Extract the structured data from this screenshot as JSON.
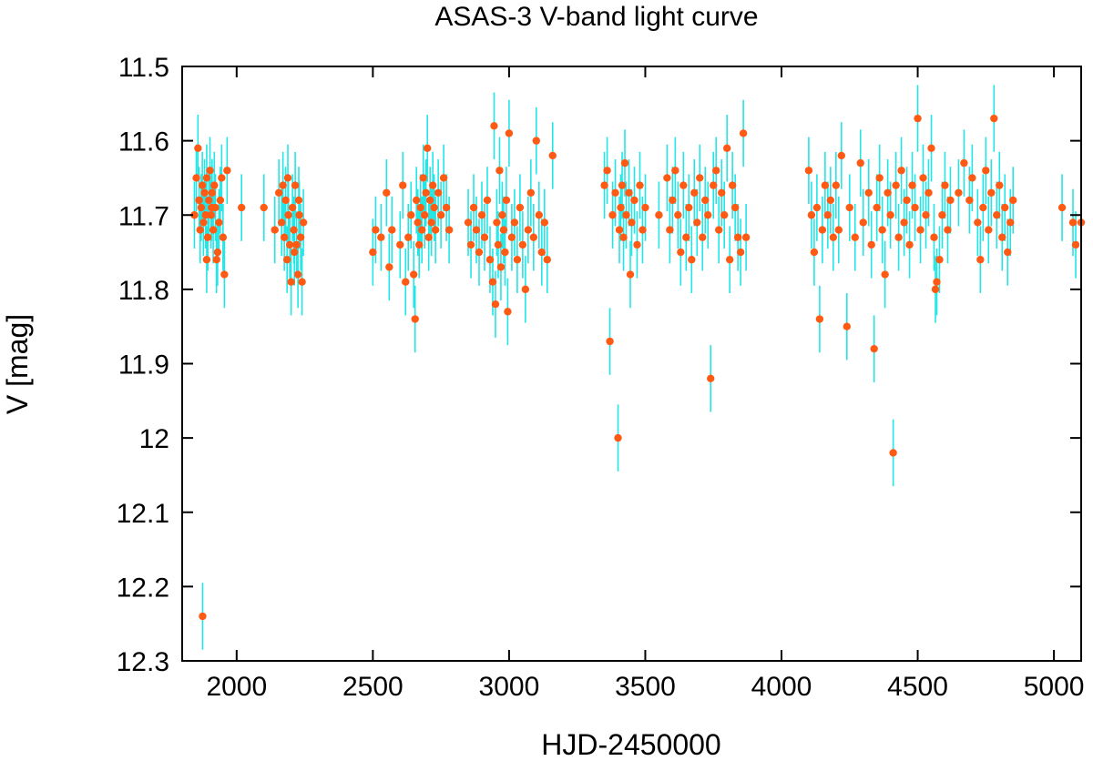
{
  "chart_data": {
    "type": "scatter",
    "title": "ASAS-3 V-band light curve",
    "xlabel": "HJD-2450000",
    "ylabel": "V [mag]",
    "xlim": [
      1800,
      5100
    ],
    "ylim": [
      11.5,
      12.3
    ],
    "y_inverted": true,
    "grid": false,
    "xticks": [
      2000,
      2500,
      3000,
      3500,
      4000,
      4500,
      5000
    ],
    "xtick_labels": [
      "2000",
      "2500",
      "3000",
      "3500",
      "4000",
      "4500",
      "5000"
    ],
    "yticks": [
      11.5,
      11.6,
      11.7,
      11.8,
      11.9,
      12.0,
      12.1,
      12.2,
      12.3
    ],
    "ytick_labels": [
      "11.5",
      "11.6",
      "11.7",
      "11.8",
      "11.9",
      "12",
      "12.1",
      "12.2",
      "12.3"
    ],
    "marker_color": "#ff5a14",
    "errorbar_color": "#22e6e6",
    "series": [
      {
        "name": "V magnitude",
        "points": [
          [
            1845,
            11.7
          ],
          [
            1852,
            11.65
          ],
          [
            1858,
            11.61
          ],
          [
            1862,
            11.68
          ],
          [
            1866,
            11.72
          ],
          [
            1870,
            11.69
          ],
          [
            1874,
            11.66
          ],
          [
            1878,
            11.71
          ],
          [
            1882,
            11.67
          ],
          [
            1886,
            11.7
          ],
          [
            1890,
            11.65
          ],
          [
            1894,
            11.73
          ],
          [
            1898,
            11.68
          ],
          [
            1902,
            11.64
          ],
          [
            1906,
            11.7
          ],
          [
            1910,
            11.67
          ],
          [
            1914,
            11.72
          ],
          [
            1918,
            11.66
          ],
          [
            1922,
            11.69
          ],
          [
            1926,
            11.76
          ],
          [
            1930,
            11.75
          ],
          [
            1935,
            11.71
          ],
          [
            1940,
            11.68
          ],
          [
            1945,
            11.65
          ],
          [
            1950,
            11.73
          ],
          [
            1955,
            11.78
          ],
          [
            1965,
            11.64
          ],
          [
            1875,
            12.24
          ],
          [
            1890,
            11.76
          ],
          [
            1908,
            11.69
          ],
          [
            2018,
            11.69
          ],
          [
            2100,
            11.69
          ],
          [
            2140,
            11.72
          ],
          [
            2155,
            11.67
          ],
          [
            2165,
            11.71
          ],
          [
            2170,
            11.66
          ],
          [
            2175,
            11.73
          ],
          [
            2180,
            11.68
          ],
          [
            2185,
            11.76
          ],
          [
            2190,
            11.7
          ],
          [
            2195,
            11.74
          ],
          [
            2200,
            11.79
          ],
          [
            2205,
            11.69
          ],
          [
            2210,
            11.72
          ],
          [
            2215,
            11.66
          ],
          [
            2220,
            11.74
          ],
          [
            2225,
            11.78
          ],
          [
            2230,
            11.7
          ],
          [
            2235,
            11.73
          ],
          [
            2240,
            11.79
          ],
          [
            2188,
            11.65
          ],
          [
            2212,
            11.75
          ],
          [
            2228,
            11.68
          ],
          [
            2245,
            11.71
          ],
          [
            2500,
            11.75
          ],
          [
            2510,
            11.72
          ],
          [
            2530,
            11.73
          ],
          [
            2550,
            11.67
          ],
          [
            2560,
            11.77
          ],
          [
            2570,
            11.72
          ],
          [
            2600,
            11.74
          ],
          [
            2610,
            11.66
          ],
          [
            2620,
            11.79
          ],
          [
            2630,
            11.73
          ],
          [
            2640,
            11.7
          ],
          [
            2650,
            11.78
          ],
          [
            2655,
            11.84
          ],
          [
            2660,
            11.68
          ],
          [
            2665,
            11.71
          ],
          [
            2670,
            11.74
          ],
          [
            2675,
            11.69
          ],
          [
            2680,
            11.72
          ],
          [
            2685,
            11.65
          ],
          [
            2690,
            11.7
          ],
          [
            2695,
            11.67
          ],
          [
            2700,
            11.61
          ],
          [
            2705,
            11.73
          ],
          [
            2710,
            11.68
          ],
          [
            2715,
            11.71
          ],
          [
            2720,
            11.66
          ],
          [
            2725,
            11.69
          ],
          [
            2730,
            11.72
          ],
          [
            2740,
            11.67
          ],
          [
            2750,
            11.7
          ],
          [
            2760,
            11.65
          ],
          [
            2770,
            11.69
          ],
          [
            2780,
            11.72
          ],
          [
            2850,
            11.71
          ],
          [
            2860,
            11.74
          ],
          [
            2870,
            11.69
          ],
          [
            2880,
            11.72
          ],
          [
            2890,
            11.75
          ],
          [
            2900,
            11.7
          ],
          [
            2910,
            11.73
          ],
          [
            2920,
            11.68
          ],
          [
            2930,
            11.76
          ],
          [
            2940,
            11.79
          ],
          [
            2945,
            11.58
          ],
          [
            2950,
            11.82
          ],
          [
            2955,
            11.71
          ],
          [
            2960,
            11.74
          ],
          [
            2965,
            11.64
          ],
          [
            2970,
            11.77
          ],
          [
            2975,
            11.7
          ],
          [
            2980,
            11.72
          ],
          [
            2985,
            11.75
          ],
          [
            2990,
            11.68
          ],
          [
            2995,
            11.83
          ],
          [
            3000,
            11.59
          ],
          [
            3010,
            11.73
          ],
          [
            3020,
            11.71
          ],
          [
            3030,
            11.76
          ],
          [
            3040,
            11.69
          ],
          [
            3050,
            11.74
          ],
          [
            3060,
            11.8
          ],
          [
            3070,
            11.72
          ],
          [
            3080,
            11.67
          ],
          [
            3090,
            11.73
          ],
          [
            3100,
            11.6
          ],
          [
            3110,
            11.7
          ],
          [
            3120,
            11.75
          ],
          [
            3130,
            11.71
          ],
          [
            3140,
            11.76
          ],
          [
            3160,
            11.62
          ],
          [
            3350,
            11.66
          ],
          [
            3360,
            11.64
          ],
          [
            3370,
            11.87
          ],
          [
            3380,
            11.7
          ],
          [
            3390,
            11.67
          ],
          [
            3400,
            12.0
          ],
          [
            3405,
            11.72
          ],
          [
            3410,
            11.69
          ],
          [
            3415,
            11.66
          ],
          [
            3420,
            11.73
          ],
          [
            3425,
            11.63
          ],
          [
            3430,
            11.7
          ],
          [
            3440,
            11.67
          ],
          [
            3445,
            11.78
          ],
          [
            3450,
            11.71
          ],
          [
            3460,
            11.68
          ],
          [
            3470,
            11.74
          ],
          [
            3480,
            11.66
          ],
          [
            3490,
            11.72
          ],
          [
            3500,
            11.69
          ],
          [
            3550,
            11.7
          ],
          [
            3580,
            11.65
          ],
          [
            3590,
            11.72
          ],
          [
            3600,
            11.68
          ],
          [
            3610,
            11.64
          ],
          [
            3620,
            11.7
          ],
          [
            3630,
            11.75
          ],
          [
            3640,
            11.66
          ],
          [
            3650,
            11.73
          ],
          [
            3660,
            11.69
          ],
          [
            3670,
            11.76
          ],
          [
            3680,
            11.67
          ],
          [
            3690,
            11.71
          ],
          [
            3700,
            11.65
          ],
          [
            3710,
            11.73
          ],
          [
            3720,
            11.68
          ],
          [
            3730,
            11.7
          ],
          [
            3740,
            11.92
          ],
          [
            3750,
            11.66
          ],
          [
            3760,
            11.64
          ],
          [
            3770,
            11.72
          ],
          [
            3780,
            11.67
          ],
          [
            3790,
            11.7
          ],
          [
            3800,
            11.61
          ],
          [
            3810,
            11.76
          ],
          [
            3820,
            11.66
          ],
          [
            3830,
            11.69
          ],
          [
            3840,
            11.73
          ],
          [
            3850,
            11.75
          ],
          [
            3860,
            11.59
          ],
          [
            3870,
            11.73
          ],
          [
            4100,
            11.64
          ],
          [
            4110,
            11.7
          ],
          [
            4120,
            11.75
          ],
          [
            4130,
            11.69
          ],
          [
            4140,
            11.84
          ],
          [
            4150,
            11.72
          ],
          [
            4160,
            11.66
          ],
          [
            4170,
            11.7
          ],
          [
            4180,
            11.68
          ],
          [
            4190,
            11.73
          ],
          [
            4200,
            11.66
          ],
          [
            4210,
            11.72
          ],
          [
            4220,
            11.62
          ],
          [
            4240,
            11.85
          ],
          [
            4250,
            11.69
          ],
          [
            4270,
            11.73
          ],
          [
            4290,
            11.63
          ],
          [
            4300,
            11.71
          ],
          [
            4320,
            11.67
          ],
          [
            4330,
            11.74
          ],
          [
            4340,
            11.88
          ],
          [
            4350,
            11.69
          ],
          [
            4360,
            11.65
          ],
          [
            4370,
            11.72
          ],
          [
            4380,
            11.78
          ],
          [
            4390,
            11.67
          ],
          [
            4400,
            11.7
          ],
          [
            4410,
            12.02
          ],
          [
            4420,
            11.66
          ],
          [
            4430,
            11.73
          ],
          [
            4440,
            11.64
          ],
          [
            4450,
            11.71
          ],
          [
            4460,
            11.68
          ],
          [
            4470,
            11.74
          ],
          [
            4480,
            11.66
          ],
          [
            4490,
            11.69
          ],
          [
            4500,
            11.57
          ],
          [
            4510,
            11.72
          ],
          [
            4520,
            11.65
          ],
          [
            4530,
            11.7
          ],
          [
            4540,
            11.67
          ],
          [
            4550,
            11.61
          ],
          [
            4560,
            11.73
          ],
          [
            4565,
            11.8
          ],
          [
            4570,
            11.79
          ],
          [
            4580,
            11.76
          ],
          [
            4590,
            11.7
          ],
          [
            4600,
            11.66
          ],
          [
            4610,
            11.72
          ],
          [
            4620,
            11.68
          ],
          [
            4650,
            11.67
          ],
          [
            4670,
            11.63
          ],
          [
            4690,
            11.68
          ],
          [
            4700,
            11.65
          ],
          [
            4720,
            11.71
          ],
          [
            4730,
            11.76
          ],
          [
            4740,
            11.69
          ],
          [
            4750,
            11.64
          ],
          [
            4760,
            11.72
          ],
          [
            4770,
            11.67
          ],
          [
            4780,
            11.57
          ],
          [
            4790,
            11.7
          ],
          [
            4800,
            11.66
          ],
          [
            4810,
            11.73
          ],
          [
            4820,
            11.69
          ],
          [
            4830,
            11.75
          ],
          [
            4840,
            11.71
          ],
          [
            4850,
            11.68
          ],
          [
            5030,
            11.69
          ],
          [
            5070,
            11.71
          ],
          [
            5080,
            11.74
          ],
          [
            5100,
            11.71
          ]
        ]
      }
    ]
  }
}
